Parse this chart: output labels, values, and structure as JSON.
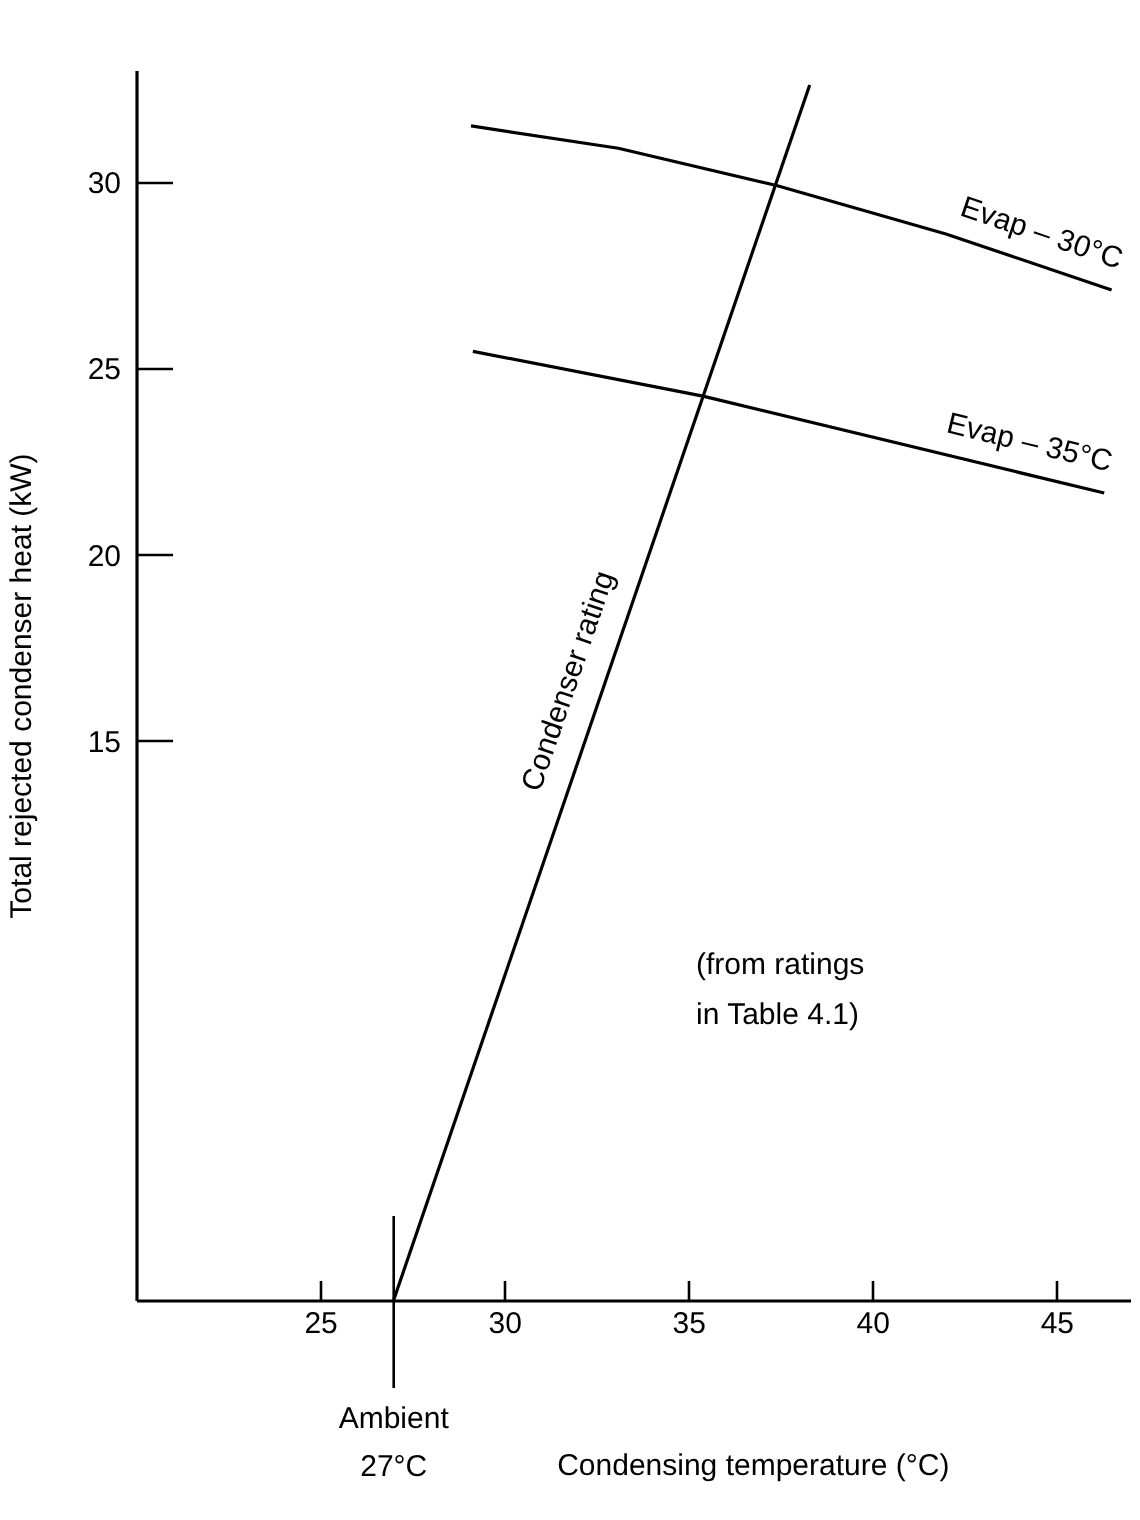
{
  "chart_data": {
    "type": "line",
    "xlabel": "Condensing temperature (°C)",
    "ylabel": "Total rejected condenser heat (kW)",
    "xlim": [
      20,
      47
    ],
    "ylim": [
      0,
      33
    ],
    "xticks": [
      25,
      30,
      35,
      40,
      45
    ],
    "yticks": [
      15,
      20,
      25,
      30
    ],
    "series": [
      {
        "name": "Condenser rating",
        "color": "#000000",
        "x": [
          27,
          38.3
        ],
        "values": [
          0,
          32.6
        ]
      },
      {
        "name": "Evap – 30°C",
        "color": "#000000",
        "x": [
          29.1,
          33.1,
          37.4,
          42,
          46.5
        ],
        "values": [
          31.5,
          30.9,
          29.9,
          28.6,
          27.1
        ]
      },
      {
        "name": "Evap – 35°C",
        "color": "#000000",
        "x": [
          29.15,
          35.4,
          46.3
        ],
        "values": [
          25.45,
          24.25,
          21.65
        ]
      }
    ],
    "ref_lines": [
      {
        "axis": "x",
        "value": 27,
        "label": "Ambient 27°C"
      }
    ],
    "annotations": [
      "(from ratings in Table 4.1)"
    ],
    "grid": false,
    "marker": "none",
    "line_style": "solid"
  }
}
